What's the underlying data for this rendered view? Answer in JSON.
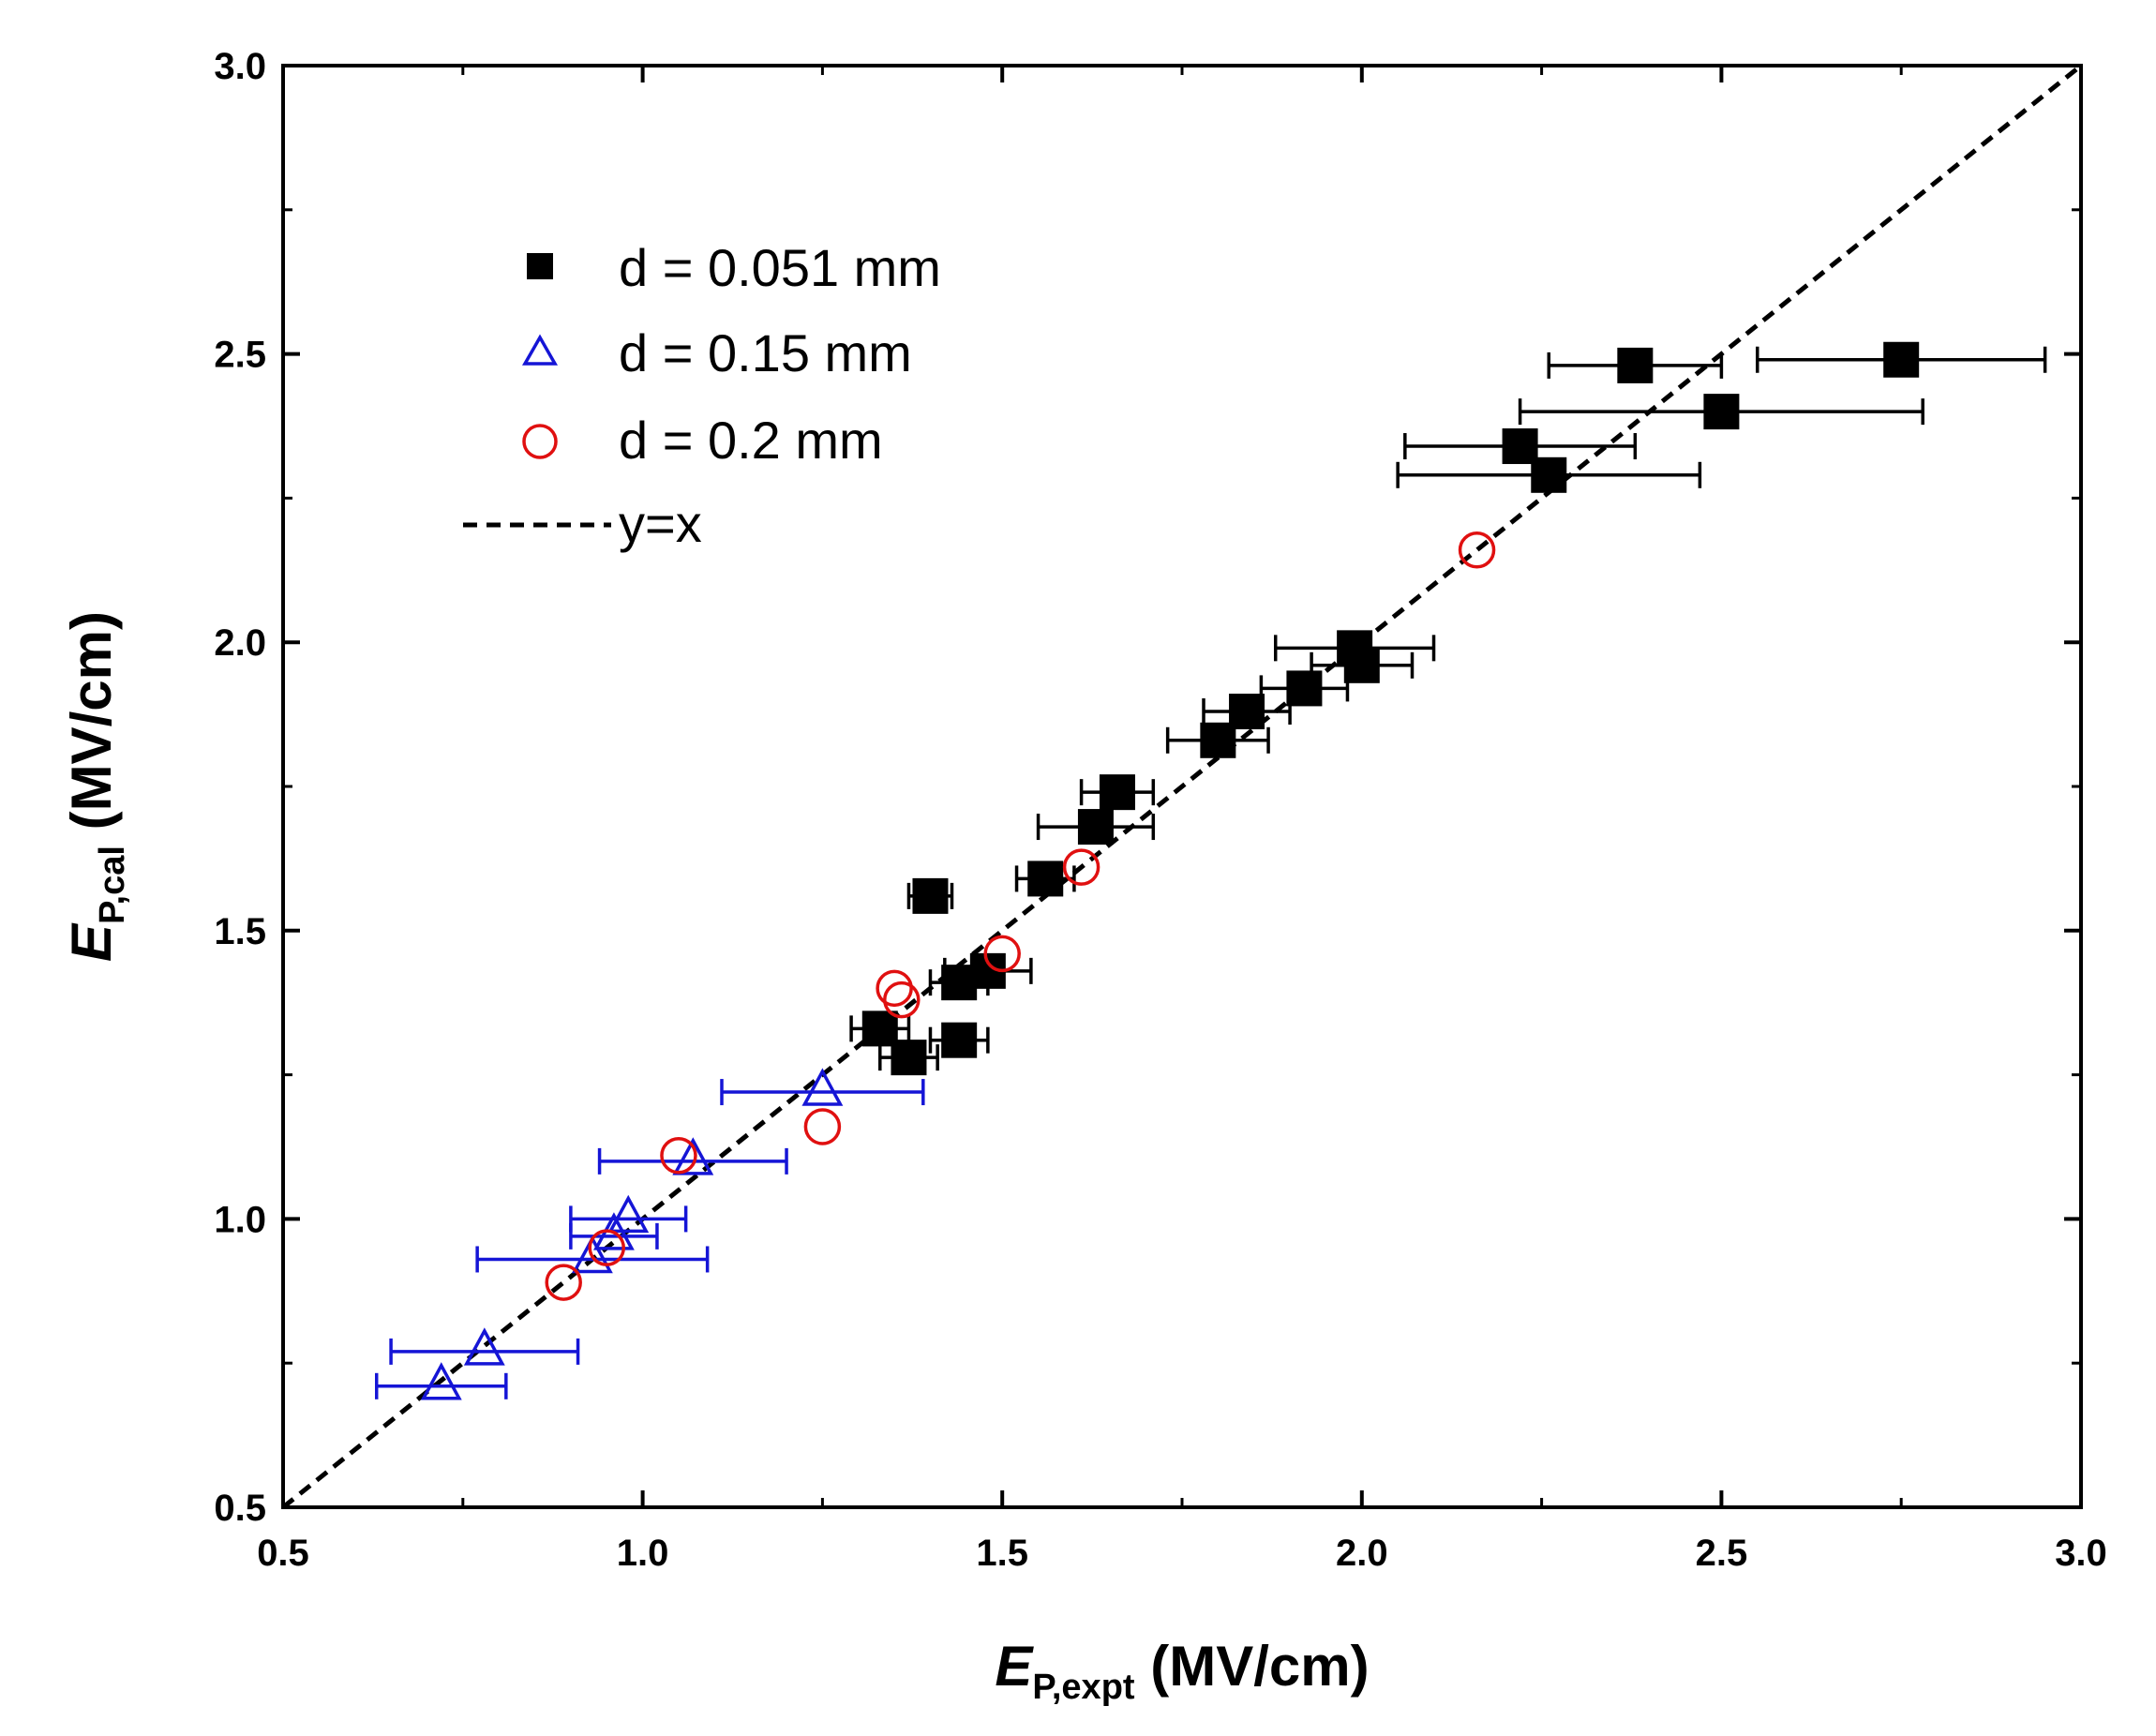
{
  "chart_data": {
    "type": "scatter",
    "xlabel": {
      "symbol": "E",
      "subscript": "P,expt",
      "unit": " (MV/cm)"
    },
    "ylabel": {
      "symbol": "E",
      "subscript": "P,cal",
      "unit": " (MV/cm)"
    },
    "xlim": [
      0.5,
      3.0
    ],
    "ylim": [
      0.5,
      3.0
    ],
    "xticks": [
      "0.5",
      "1.0",
      "1.5",
      "2.0",
      "2.5",
      "3.0"
    ],
    "yticks": [
      "0.5",
      "1.0",
      "1.5",
      "2.0",
      "2.5",
      "3.0"
    ],
    "legend_position": "top-left",
    "reference_line": {
      "name": "y=x",
      "style": "dashed",
      "color": "#000000"
    },
    "series": [
      {
        "name": "d = 0.051 mm",
        "marker": "filled-square",
        "color": "#000000",
        "points": [
          {
            "x": 2.75,
            "y": 2.49,
            "xerr": 0.2
          },
          {
            "x": 2.38,
            "y": 2.48,
            "xerr": 0.12
          },
          {
            "x": 2.5,
            "y": 2.4,
            "xerr": 0.28
          },
          {
            "x": 2.22,
            "y": 2.34,
            "xerr": 0.16
          },
          {
            "x": 2.26,
            "y": 2.29,
            "xerr": 0.21
          },
          {
            "x": 1.99,
            "y": 1.99,
            "xerr": 0.11
          },
          {
            "x": 2.0,
            "y": 1.96,
            "xerr": 0.07
          },
          {
            "x": 1.92,
            "y": 1.92,
            "xerr": 0.06
          },
          {
            "x": 1.84,
            "y": 1.88,
            "xerr": 0.06
          },
          {
            "x": 1.8,
            "y": 1.83,
            "xerr": 0.07
          },
          {
            "x": 1.66,
            "y": 1.74,
            "xerr": 0.05
          },
          {
            "x": 1.63,
            "y": 1.68,
            "xerr": 0.08
          },
          {
            "x": 1.56,
            "y": 1.59,
            "xerr": 0.04
          },
          {
            "x": 1.4,
            "y": 1.56,
            "xerr": 0.03
          },
          {
            "x": 1.44,
            "y": 1.41,
            "xerr": 0.04
          },
          {
            "x": 1.48,
            "y": 1.43,
            "xerr": 0.06
          },
          {
            "x": 1.33,
            "y": 1.33,
            "xerr": 0.04
          },
          {
            "x": 1.44,
            "y": 1.31,
            "xerr": 0.04
          },
          {
            "x": 1.37,
            "y": 1.28,
            "xerr": 0.04
          }
        ]
      },
      {
        "name": "d = 0.15 mm",
        "marker": "open-triangle",
        "color": "#1515d6",
        "points": [
          {
            "x": 1.25,
            "y": 1.22,
            "xerr": 0.14
          },
          {
            "x": 1.07,
            "y": 1.1,
            "xerr": 0.13
          },
          {
            "x": 0.98,
            "y": 1.0,
            "xerr": 0.08
          },
          {
            "x": 0.96,
            "y": 0.97,
            "xerr": 0.06
          },
          {
            "x": 0.93,
            "y": 0.93,
            "xerr": 0.16
          },
          {
            "x": 0.78,
            "y": 0.77,
            "xerr": 0.13
          },
          {
            "x": 0.72,
            "y": 0.71,
            "xerr": 0.09
          }
        ]
      },
      {
        "name": "d = 0.2 mm",
        "marker": "open-circle",
        "color": "#e01010",
        "points": [
          {
            "x": 2.16,
            "y": 2.16
          },
          {
            "x": 1.61,
            "y": 1.61
          },
          {
            "x": 1.5,
            "y": 1.46
          },
          {
            "x": 1.35,
            "y": 1.4
          },
          {
            "x": 1.36,
            "y": 1.38
          },
          {
            "x": 1.05,
            "y": 1.11
          },
          {
            "x": 1.25,
            "y": 1.16
          },
          {
            "x": 0.95,
            "y": 0.95
          },
          {
            "x": 0.89,
            "y": 0.89
          }
        ]
      }
    ]
  }
}
